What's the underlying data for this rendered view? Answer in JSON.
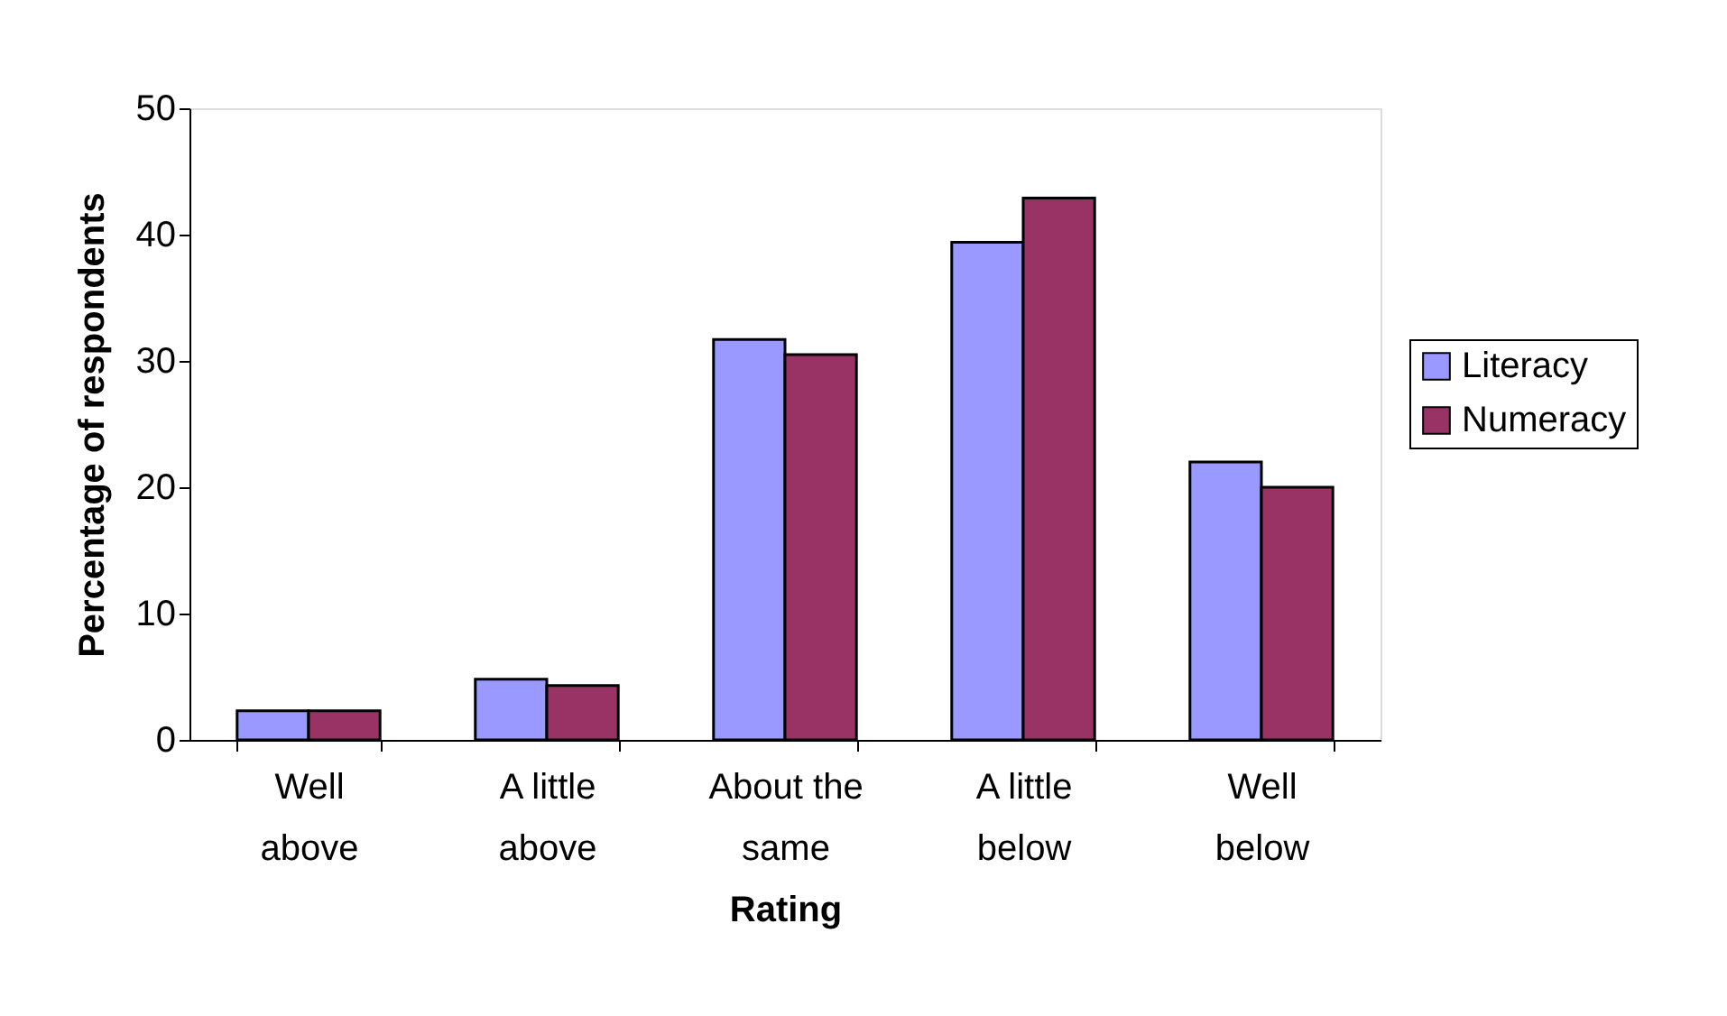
{
  "chart_data": {
    "type": "bar",
    "xlabel": "Rating",
    "ylabel": "Percentage of respondents",
    "categories": [
      "Well\nabove",
      "A little\nabove",
      "About the\nsame",
      "A little\nbelow",
      "Well\nbelow"
    ],
    "series": [
      {
        "name": "Literacy",
        "color": "#9999ff",
        "values": [
          2.3,
          4.8,
          31.7,
          39.4,
          22.0
        ]
      },
      {
        "name": "Numeracy",
        "color": "#993366",
        "values": [
          2.3,
          4.3,
          30.5,
          42.9,
          20.0
        ]
      }
    ],
    "ylim": [
      0,
      50
    ],
    "yticks": [
      0,
      10,
      20,
      30,
      40,
      50
    ],
    "grid": false,
    "legend": "right"
  }
}
